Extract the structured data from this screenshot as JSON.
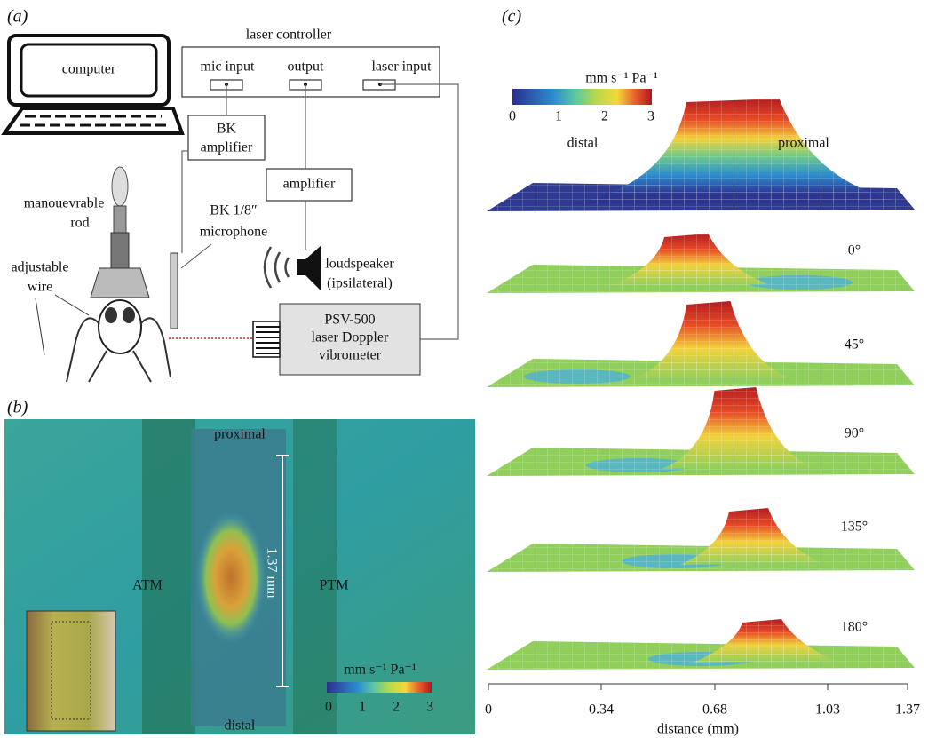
{
  "panel_a": {
    "label": "(a)",
    "computer": "computer",
    "laser_controller": "laser controller",
    "mic_input": "mic input",
    "output": "output",
    "laser_input": "laser input",
    "bk_amplifier": [
      "BK",
      "amplifier"
    ],
    "amplifier": "amplifier",
    "microphone": [
      "BK 1/8″",
      "microphone"
    ],
    "loudspeaker": [
      "loudspeaker",
      "(ipsilateral)"
    ],
    "rod": [
      "manouevrable",
      "rod"
    ],
    "wire": [
      "adjustable",
      "wire"
    ],
    "vibrometer": [
      "PSV-500",
      "laser Doppler",
      "vibrometer"
    ]
  },
  "panel_b": {
    "label": "(b)",
    "proximal": "proximal",
    "distal": "distal",
    "atm": "ATM",
    "ptm": "PTM",
    "scale": "1.37 mm",
    "colorbar": {
      "unit": "mm s⁻¹ Pa⁻¹",
      "ticks": [
        "0",
        "1",
        "2",
        "3"
      ]
    }
  },
  "panel_c": {
    "label": "(c)",
    "colorbar": {
      "unit": "mm s⁻¹ Pa⁻¹",
      "ticks": [
        "0",
        "1",
        "2",
        "3"
      ]
    },
    "distal": "distal",
    "proximal": "proximal",
    "angles": [
      "0°",
      "45°",
      "90°",
      "135°",
      "180°"
    ],
    "axis": {
      "label": "distance (mm)",
      "ticks": [
        "0",
        "0.34",
        "0.68",
        "1.03",
        "1.37"
      ]
    }
  }
}
